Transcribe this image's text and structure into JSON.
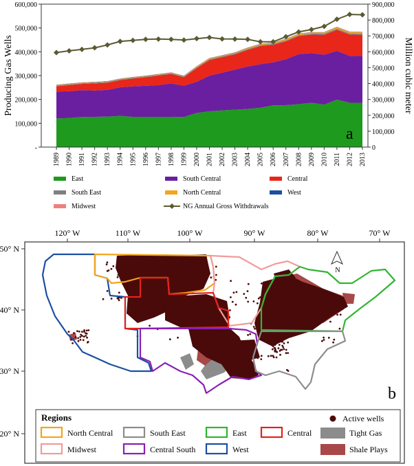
{
  "chart_data": [
    {
      "type": "area",
      "panel_label": "a",
      "ylabel": "Producing Gas Wells",
      "y2label": "Million cubic meter",
      "ylim": [
        0,
        600000
      ],
      "y2lim": [
        0,
        900000
      ],
      "yticks": [
        "-",
        "100,000",
        "200,000",
        "300,000",
        "400,000",
        "500,000",
        "600,000"
      ],
      "y2ticks": [
        "0",
        "100,000",
        "200,000",
        "300,000",
        "400,000",
        "500,000",
        "600,000",
        "700,000",
        "800,000",
        "900,000"
      ],
      "categories": [
        "1989",
        "1990",
        "1991",
        "1992",
        "1993",
        "1994",
        "1995",
        "1996",
        "1997",
        "1998",
        "1999",
        "2000",
        "2001",
        "2002",
        "2003",
        "2004",
        "2005",
        "2006",
        "2007",
        "2008",
        "2009",
        "2010",
        "2011",
        "2012",
        "2013"
      ],
      "series": [
        {
          "name": "East",
          "color": "#1e9a1e",
          "values": [
            120000,
            122000,
            126000,
            127000,
            128000,
            131000,
            127000,
            127000,
            127000,
            127000,
            126000,
            143000,
            150000,
            154000,
            157000,
            160000,
            165000,
            175000,
            176000,
            180000,
            186000,
            178000,
            199000,
            186000,
            186000
          ]
        },
        {
          "name": "South Central",
          "color": "#6a1fa0",
          "values": [
            113000,
            112000,
            113000,
            110000,
            112000,
            120000,
            128000,
            130000,
            133000,
            140000,
            132000,
            131000,
            150000,
            158000,
            168000,
            178000,
            183000,
            181000,
            193000,
            210000,
            208000,
            210000,
            205000,
            197000,
            196000
          ]
        },
        {
          "name": "Central",
          "color": "#e8261a",
          "values": [
            22000,
            26000,
            26000,
            30000,
            30000,
            30000,
            33000,
            36000,
            40000,
            40000,
            35000,
            57000,
            65000,
            65000,
            64000,
            70000,
            76000,
            73000,
            75000,
            76000,
            78000,
            83000,
            88000,
            89000,
            89000
          ]
        },
        {
          "name": "South East",
          "color": "#808080",
          "values": [
            3000,
            3000,
            3000,
            3000,
            3000,
            3000,
            3000,
            3000,
            3000,
            3000,
            3000,
            4000,
            4000,
            4000,
            4000,
            4000,
            4000,
            4000,
            4000,
            4000,
            4000,
            5000,
            5000,
            5000,
            5000
          ]
        },
        {
          "name": "North Central",
          "color": "#f3a51b",
          "values": [
            2000,
            2000,
            2000,
            2000,
            2000,
            2000,
            2000,
            2000,
            2000,
            2000,
            2000,
            3000,
            3000,
            3000,
            3000,
            4000,
            4000,
            4000,
            5000,
            5000,
            5000,
            5000,
            6000,
            6000,
            6000
          ]
        },
        {
          "name": "West",
          "color": "#1b4fa3",
          "values": [
            1000,
            1000,
            1000,
            1000,
            1000,
            1000,
            1000,
            1000,
            1000,
            1000,
            1000,
            1000,
            1000,
            1000,
            1000,
            1000,
            1000,
            1000,
            1000,
            1000,
            1000,
            1000,
            1000,
            1000,
            1000
          ]
        },
        {
          "name": "Midwest",
          "color": "#f08080",
          "values": [
            1000,
            1000,
            1000,
            1000,
            1000,
            1000,
            1000,
            1000,
            1000,
            1000,
            1000,
            1000,
            1000,
            1000,
            1000,
            1000,
            1000,
            1000,
            1000,
            1000,
            1000,
            1000,
            1000,
            1000,
            1000
          ]
        }
      ],
      "line_series": {
        "name": "NG Annual Gross Withdrawals",
        "color": "#5a5a32",
        "axis": "right",
        "values": [
          595000,
          606000,
          615000,
          625000,
          643000,
          665000,
          672000,
          678000,
          680000,
          678000,
          674000,
          683000,
          690000,
          681000,
          680000,
          678000,
          663000,
          663000,
          695000,
          725000,
          740000,
          760000,
          805000,
          835000,
          833000
        ]
      },
      "legend": {
        "items": [
          "East",
          "South Central",
          "Central",
          "South East",
          "North Central",
          "West",
          "Midwest",
          "NG Annual Gross Withdrawals"
        ],
        "placement": "bottom"
      }
    },
    {
      "type": "map",
      "panel_label": "b",
      "lon_ticks": [
        "120° W",
        "110° W",
        "100° W",
        "90° W",
        "80° W",
        "70° W"
      ],
      "lat_ticks": [
        "50° N",
        "40° N",
        "30° N",
        "20° N"
      ],
      "north_arrow": "N",
      "legend": {
        "title": "Regions",
        "regions": [
          {
            "name": "North Central",
            "color": "#f3a51b"
          },
          {
            "name": "South East",
            "color": "#8c8c8c"
          },
          {
            "name": "East",
            "color": "#2fb52f"
          },
          {
            "name": "Central",
            "color": "#e2231a"
          },
          {
            "name": "Midwest",
            "color": "#f29b9b"
          },
          {
            "name": "Central South",
            "color": "#8a1fb3"
          },
          {
            "name": "West",
            "color": "#1b4fa3"
          }
        ],
        "markers": [
          {
            "name": "Active wells",
            "color": "#4a0a0a"
          },
          {
            "name": "Tight Gas",
            "color": "#8c8c8c"
          },
          {
            "name": "Shale Plays",
            "color": "#a84848"
          }
        ]
      }
    }
  ]
}
